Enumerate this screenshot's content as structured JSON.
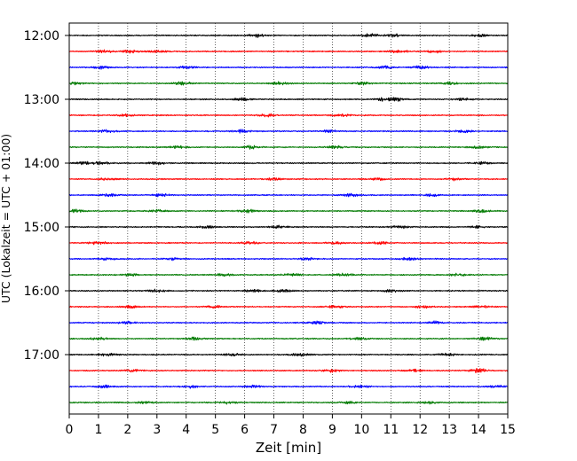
{
  "chart_data": {
    "type": "line",
    "title": "",
    "xlabel": "Zeit  [min]",
    "ylabel": "UTC (Lokalzeit = UTC + 01:00)",
    "xlim": [
      0,
      15
    ],
    "x_ticks": [
      "0",
      "1",
      "2",
      "3",
      "4",
      "5",
      "6",
      "7",
      "8",
      "9",
      "10",
      "11",
      "12",
      "13",
      "14",
      "15"
    ],
    "y_ticks": [
      {
        "label": "12:00",
        "row": 0
      },
      {
        "label": "13:00",
        "row": 4
      },
      {
        "label": "14:00",
        "row": 8
      },
      {
        "label": "15:00",
        "row": 12
      },
      {
        "label": "16:00",
        "row": 16
      },
      {
        "label": "17:00",
        "row": 20
      }
    ],
    "row_interval_minutes": 15,
    "trace_count": 24,
    "trace_colors": [
      "#000000",
      "#ff0000",
      "#0000ff",
      "#007a00"
    ],
    "vertical_grid": "dotted",
    "series": [
      {
        "start": "12:00",
        "color": "#000000",
        "bursts": [
          [
            6.4,
            0.65
          ],
          [
            10.3,
            0.6
          ],
          [
            11.1,
            0.55
          ],
          [
            14.0,
            0.5
          ]
        ]
      },
      {
        "start": "12:15",
        "color": "#ff0000",
        "bursts": [
          [
            1.2,
            0.5
          ],
          [
            2.1,
            0.55
          ],
          [
            3.0,
            0.5
          ],
          [
            11.3,
            0.65
          ],
          [
            12.5,
            0.55
          ]
        ]
      },
      {
        "start": "12:30",
        "color": "#0000ff",
        "bursts": [
          [
            1.1,
            0.55
          ],
          [
            4.0,
            0.55
          ],
          [
            10.8,
            0.6
          ],
          [
            12.0,
            0.55
          ]
        ]
      },
      {
        "start": "12:45",
        "color": "#007a00",
        "bursts": [
          [
            0.2,
            0.55
          ],
          [
            3.9,
            0.7
          ],
          [
            7.2,
            0.55
          ],
          [
            10.0,
            0.55
          ],
          [
            13.0,
            0.5
          ]
        ]
      },
      {
        "start": "13:00",
        "color": "#000000",
        "bursts": [
          [
            5.9,
            0.6
          ],
          [
            10.8,
            0.65
          ],
          [
            11.2,
            0.6
          ],
          [
            13.5,
            0.55
          ]
        ]
      },
      {
        "start": "13:15",
        "color": "#ff0000",
        "bursts": [
          [
            1.9,
            0.55
          ],
          [
            6.8,
            0.55
          ],
          [
            9.3,
            0.5
          ]
        ]
      },
      {
        "start": "13:30",
        "color": "#0000ff",
        "bursts": [
          [
            1.3,
            0.55
          ],
          [
            5.9,
            0.55
          ],
          [
            8.9,
            0.55
          ],
          [
            13.5,
            0.5
          ]
        ]
      },
      {
        "start": "13:45",
        "color": "#007a00",
        "bursts": [
          [
            3.7,
            0.5
          ],
          [
            6.2,
            0.6
          ],
          [
            9.1,
            0.55
          ],
          [
            14.0,
            0.5
          ]
        ]
      },
      {
        "start": "14:00",
        "color": "#000000",
        "bursts": [
          [
            0.5,
            0.55
          ],
          [
            1.1,
            0.5
          ],
          [
            3.0,
            0.55
          ],
          [
            14.1,
            0.5
          ]
        ]
      },
      {
        "start": "14:15",
        "color": "#ff0000",
        "bursts": [
          [
            1.3,
            0.5
          ],
          [
            7.0,
            0.5
          ],
          [
            10.5,
            0.5
          ],
          [
            13.2,
            0.5
          ]
        ]
      },
      {
        "start": "14:30",
        "color": "#0000ff",
        "bursts": [
          [
            1.4,
            0.5
          ],
          [
            3.1,
            0.55
          ],
          [
            9.6,
            0.5
          ],
          [
            12.4,
            0.5
          ]
        ]
      },
      {
        "start": "14:45",
        "color": "#007a00",
        "bursts": [
          [
            0.2,
            0.55
          ],
          [
            3.1,
            0.65
          ],
          [
            6.1,
            0.6
          ],
          [
            14.1,
            0.55
          ]
        ]
      },
      {
        "start": "15:00",
        "color": "#000000",
        "bursts": [
          [
            4.7,
            0.55
          ],
          [
            7.2,
            0.55
          ],
          [
            11.3,
            0.6
          ],
          [
            13.9,
            0.5
          ]
        ]
      },
      {
        "start": "15:15",
        "color": "#ff0000",
        "bursts": [
          [
            1.0,
            0.65
          ],
          [
            6.2,
            0.55
          ],
          [
            9.1,
            0.5
          ],
          [
            10.6,
            0.55
          ]
        ]
      },
      {
        "start": "15:30",
        "color": "#0000ff",
        "bursts": [
          [
            1.3,
            0.55
          ],
          [
            3.5,
            0.5
          ],
          [
            8.1,
            0.6
          ],
          [
            11.6,
            0.55
          ]
        ]
      },
      {
        "start": "15:45",
        "color": "#007a00",
        "bursts": [
          [
            2.1,
            0.5
          ],
          [
            5.3,
            0.55
          ],
          [
            7.6,
            0.55
          ],
          [
            9.4,
            0.55
          ],
          [
            13.3,
            0.5
          ]
        ]
      },
      {
        "start": "16:00",
        "color": "#000000",
        "bursts": [
          [
            3.0,
            0.55
          ],
          [
            6.3,
            0.55
          ],
          [
            7.3,
            0.65
          ],
          [
            11.0,
            0.5
          ]
        ]
      },
      {
        "start": "16:15",
        "color": "#ff0000",
        "bursts": [
          [
            2.1,
            0.5
          ],
          [
            5.0,
            0.5
          ],
          [
            9.1,
            0.55
          ],
          [
            12.1,
            0.5
          ],
          [
            14.1,
            0.5
          ]
        ]
      },
      {
        "start": "16:30",
        "color": "#0000ff",
        "bursts": [
          [
            2.0,
            0.55
          ],
          [
            8.5,
            0.6
          ],
          [
            12.5,
            0.55
          ]
        ]
      },
      {
        "start": "16:45",
        "color": "#007a00",
        "bursts": [
          [
            1.0,
            0.5
          ],
          [
            4.3,
            0.65
          ],
          [
            9.9,
            0.55
          ],
          [
            14.2,
            0.6
          ]
        ]
      },
      {
        "start": "17:00",
        "color": "#000000",
        "bursts": [
          [
            1.3,
            0.55
          ],
          [
            5.6,
            0.5
          ],
          [
            7.9,
            0.55
          ],
          [
            12.9,
            0.55
          ]
        ]
      },
      {
        "start": "17:15",
        "color": "#ff0000",
        "bursts": [
          [
            2.2,
            0.5
          ],
          [
            9.0,
            0.55
          ],
          [
            11.8,
            0.5
          ],
          [
            14.0,
            0.85
          ]
        ]
      },
      {
        "start": "17:30",
        "color": "#0000ff",
        "bursts": [
          [
            1.2,
            0.55
          ],
          [
            4.1,
            0.55
          ],
          [
            6.3,
            0.55
          ],
          [
            9.9,
            0.5
          ],
          [
            14.6,
            0.55
          ]
        ]
      },
      {
        "start": "17:45",
        "color": "#007a00",
        "bursts": [
          [
            2.6,
            0.5
          ],
          [
            5.4,
            0.5
          ],
          [
            9.5,
            0.5
          ],
          [
            12.3,
            0.5
          ]
        ]
      }
    ]
  }
}
